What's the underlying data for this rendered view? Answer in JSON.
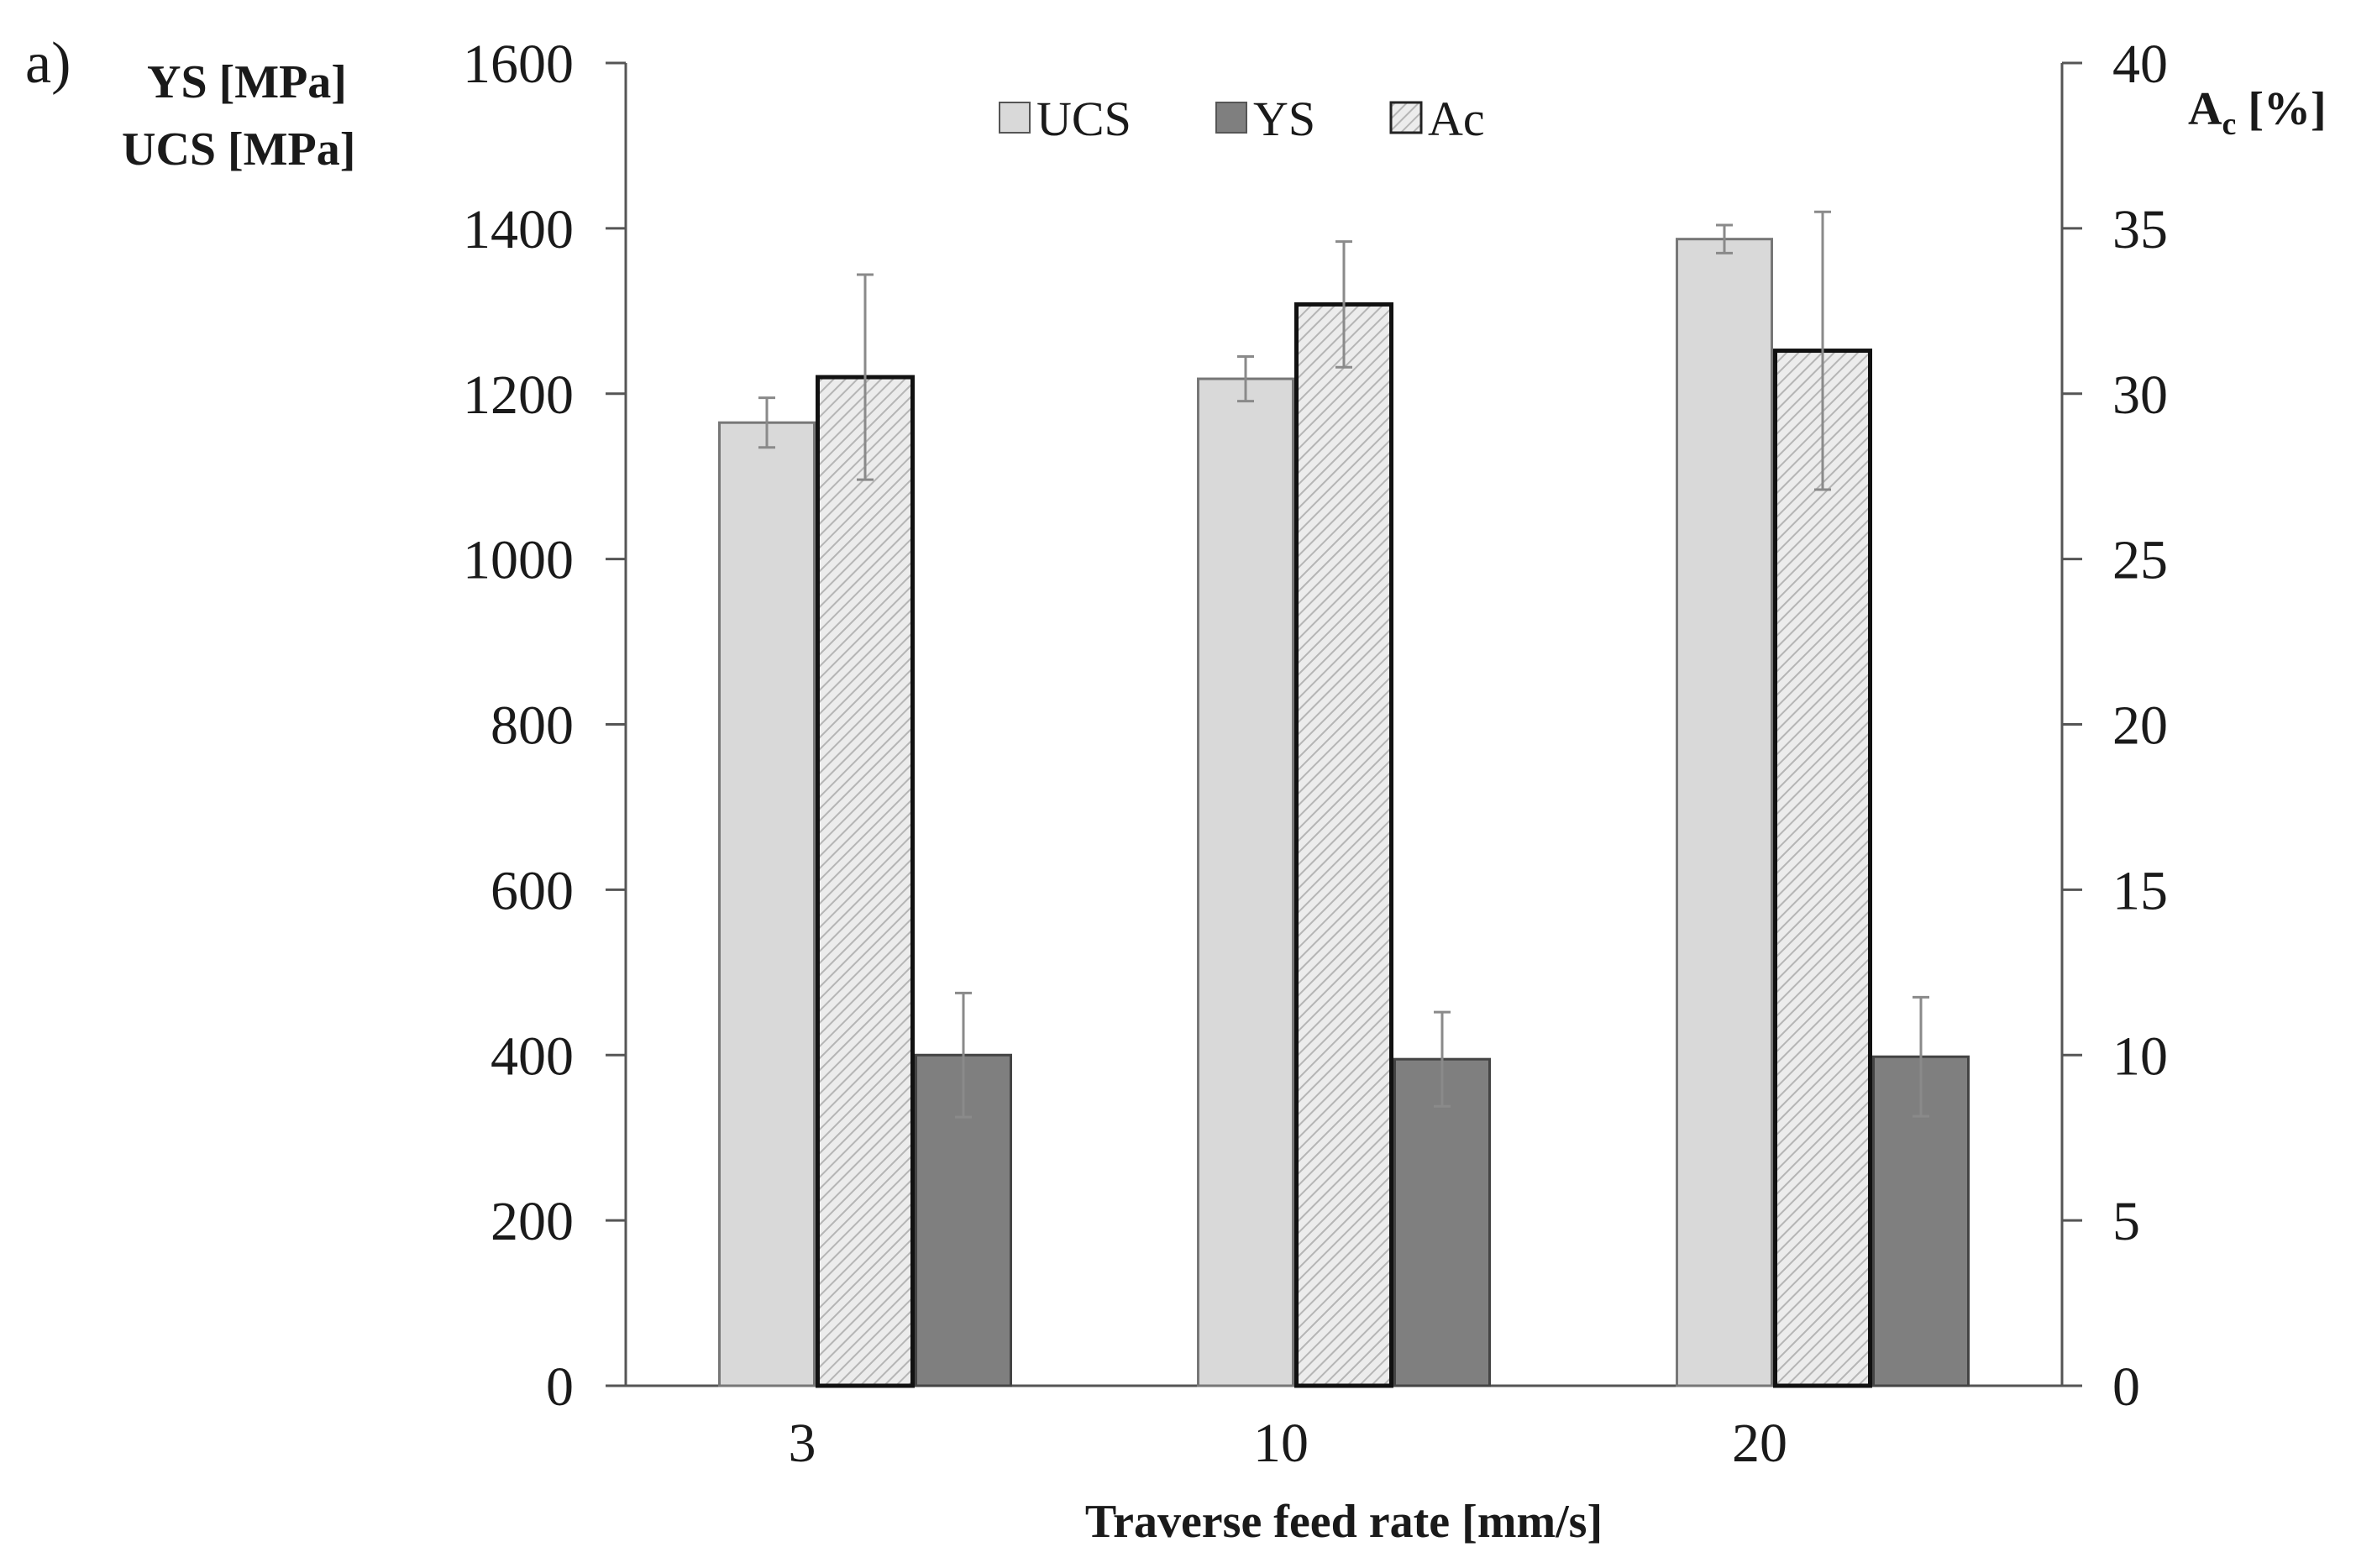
{
  "panel_label": "a)",
  "chart_data": {
    "type": "bar",
    "categories": [
      "3",
      "10",
      "20"
    ],
    "xlabel": "Traverse feed rate [mm/s]",
    "ylabel_left": [
      "YS [MPa]",
      "UCS [MPa]"
    ],
    "ylabel_right": {
      "main": "A",
      "subscript": "c",
      "unit": " [%]"
    },
    "ylim_left": [
      0,
      1600
    ],
    "ylim_right": [
      0,
      40
    ],
    "yticks_left": [
      "0",
      "200",
      "400",
      "600",
      "800",
      "1000",
      "1200",
      "1400",
      "1600"
    ],
    "yticks_right": [
      "0",
      "5",
      "10",
      "15",
      "20",
      "25",
      "30",
      "35",
      "40"
    ],
    "legend": [
      "UCS",
      "YS",
      "Ac"
    ],
    "legend_position": "top-center",
    "series": [
      {
        "name": "UCS",
        "axis": "left",
        "color": "#d9d9d9",
        "style": "solid",
        "values": [
          1165,
          1218,
          1387
        ],
        "errors": [
          30,
          27,
          17
        ]
      },
      {
        "name": "Ac",
        "axis": "right",
        "color": "#e8e8e8",
        "style": "hatched",
        "values": [
          30.5,
          32.7,
          31.3
        ],
        "errors": [
          3.1,
          1.9,
          4.2
        ]
      },
      {
        "name": "YS",
        "axis": "left",
        "color": "#7f7f7f",
        "style": "solid",
        "values": [
          400,
          395,
          398
        ],
        "errors": [
          75,
          57,
          72
        ]
      }
    ]
  }
}
